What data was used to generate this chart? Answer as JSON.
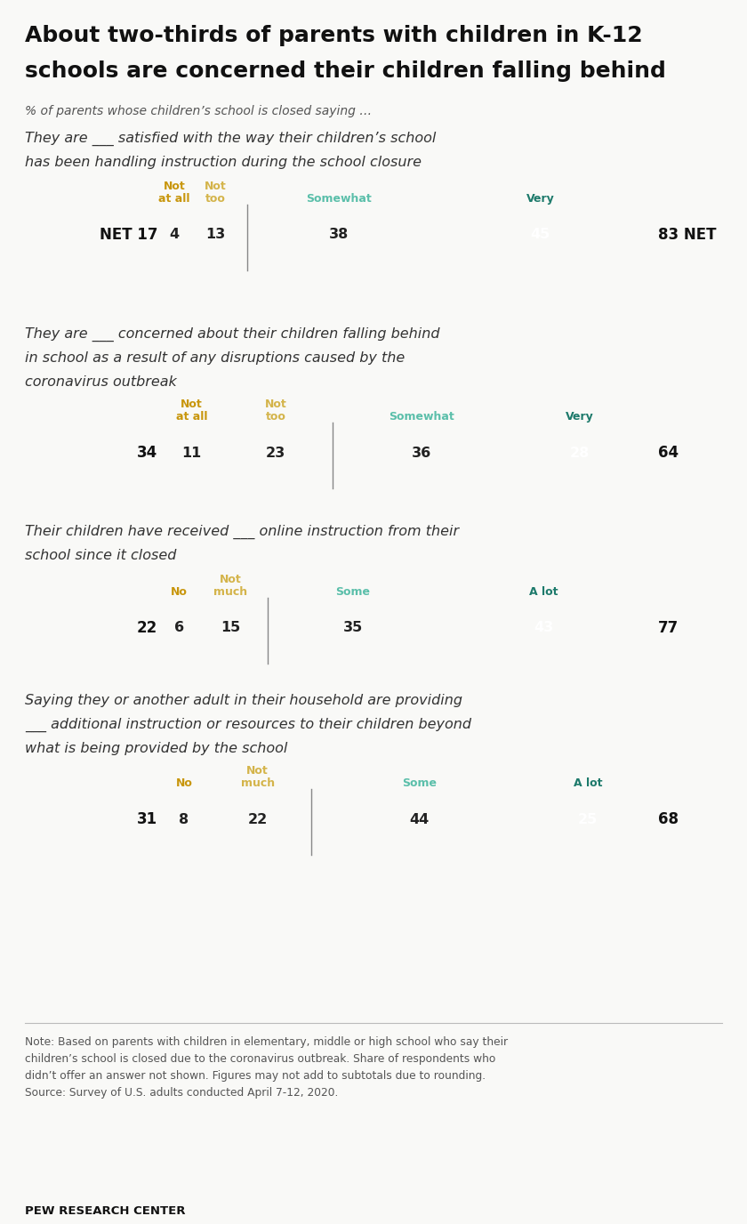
{
  "title_line1": "About two-thirds of parents with children in K-12",
  "title_line2": "schools are concerned their children falling behind",
  "subtitle": "% of parents whose children’s school is closed saying …",
  "bg_color": "#f9f9f7",
  "colors": {
    "dark_gold": "#C8960C",
    "light_gold": "#D4B44A",
    "light_teal": "#5BBFAA",
    "dark_teal": "#1D7A6B"
  },
  "charts": [
    {
      "question_lines": [
        "They are ___ satisfied with the way their children’s school",
        "has been handling instruction during the school closure"
      ],
      "labels_top": [
        [
          "Not",
          "at all"
        ],
        [
          "Not",
          "too"
        ],
        [
          "Somewhat"
        ],
        [
          "Very"
        ]
      ],
      "values": [
        4,
        13,
        38,
        45
      ],
      "left_net": "NET 17",
      "right_net": "83 NET",
      "bar_colors": [
        "dark_gold",
        "light_gold",
        "light_teal",
        "dark_teal"
      ],
      "value_text_colors": [
        "#222222",
        "#222222",
        "#222222",
        "#ffffff"
      ]
    },
    {
      "question_lines": [
        "They are ___ concerned about their children falling behind",
        "in school as a result of any disruptions caused by the",
        "coronavirus outbreak"
      ],
      "labels_top": [
        [
          "Not",
          "at all"
        ],
        [
          "Not",
          "too"
        ],
        [
          "Somewhat"
        ],
        [
          "Very"
        ]
      ],
      "values": [
        11,
        23,
        36,
        28
      ],
      "left_net": "34",
      "right_net": "64",
      "bar_colors": [
        "dark_gold",
        "light_gold",
        "light_teal",
        "dark_teal"
      ],
      "value_text_colors": [
        "#222222",
        "#222222",
        "#222222",
        "#ffffff"
      ]
    },
    {
      "question_lines": [
        "Their children have received ___ online instruction from their",
        "school since it closed"
      ],
      "labels_top": [
        [
          "No"
        ],
        [
          "Not",
          "much"
        ],
        [
          "Some"
        ],
        [
          "A lot"
        ]
      ],
      "values": [
        6,
        15,
        35,
        43
      ],
      "left_net": "22",
      "right_net": "77",
      "bar_colors": [
        "dark_gold",
        "light_gold",
        "light_teal",
        "dark_teal"
      ],
      "value_text_colors": [
        "#222222",
        "#222222",
        "#222222",
        "#ffffff"
      ]
    },
    {
      "question_lines": [
        "Saying they or another adult in their household are providing",
        "___ additional instruction or resources to their children beyond",
        "what is being provided by the school"
      ],
      "labels_top": [
        [
          "No"
        ],
        [
          "Not",
          "much"
        ],
        [
          "Some"
        ],
        [
          "A lot"
        ]
      ],
      "values": [
        8,
        22,
        44,
        25
      ],
      "left_net": "31",
      "right_net": "68",
      "bar_colors": [
        "dark_gold",
        "light_gold",
        "light_teal",
        "dark_teal"
      ],
      "value_text_colors": [
        "#222222",
        "#222222",
        "#222222",
        "#ffffff"
      ]
    }
  ],
  "note_lines": [
    "Note: Based on parents with children in elementary, middle or high school who say their",
    "children’s school is closed due to the coronavirus outbreak. Share of respondents who",
    "didn’t offer an answer not shown. Figures may not add to subtotals due to rounding.",
    "Source: Survey of U.S. adults conducted April 7-12, 2020."
  ],
  "source": "PEW RESEARCH CENTER"
}
